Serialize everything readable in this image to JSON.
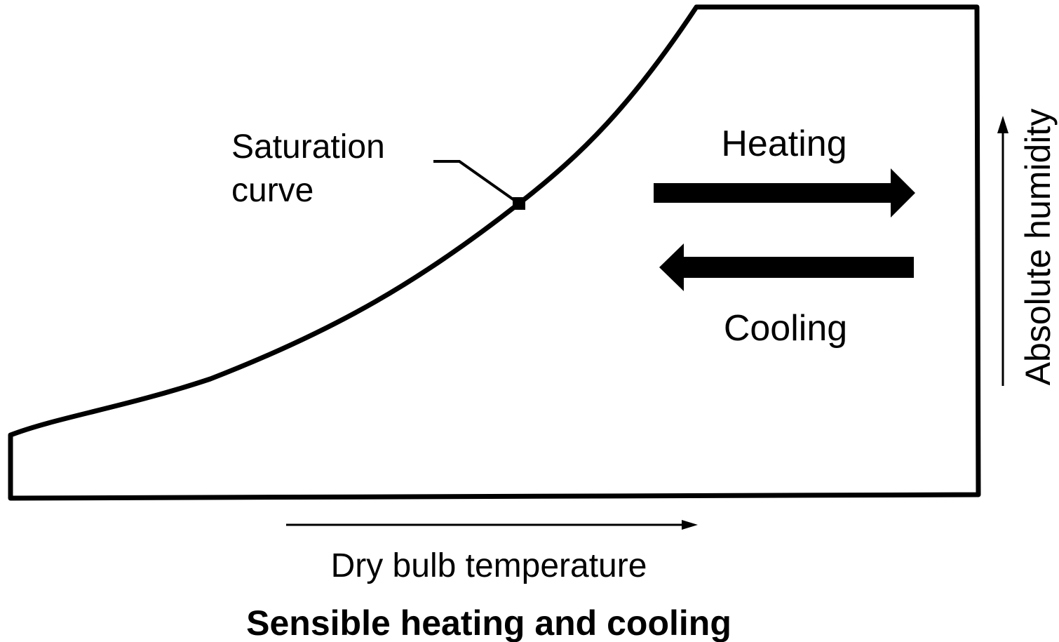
{
  "title": "Sensible heating and cooling",
  "labels": {
    "saturation_curve": [
      "Saturation",
      "curve"
    ],
    "heating": "Heating",
    "cooling": "Cooling",
    "y_axis": "Absolute humidity",
    "x_axis": "Dry bulb temperature"
  }
}
